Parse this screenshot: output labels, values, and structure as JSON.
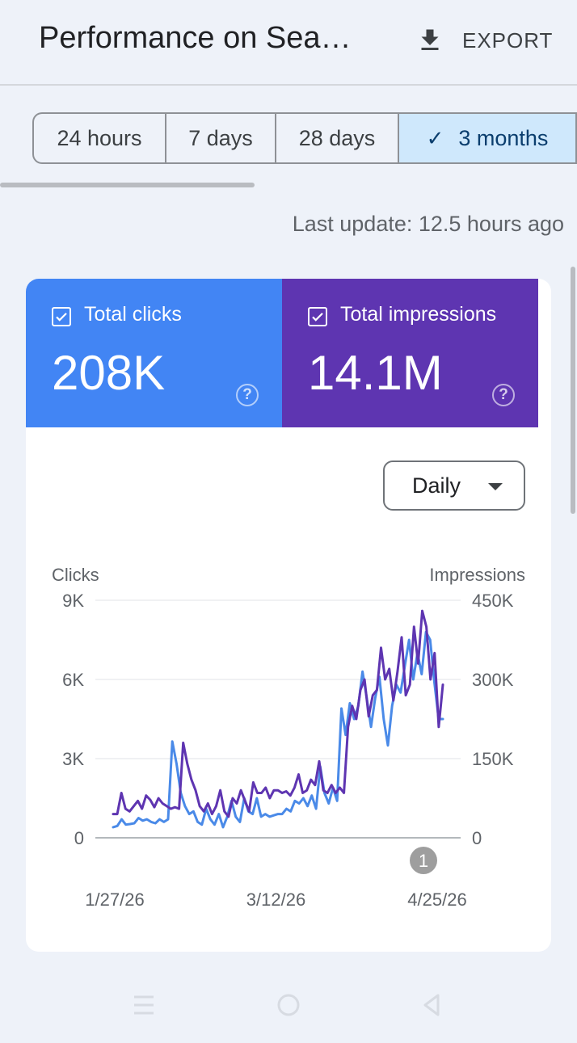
{
  "header": {
    "title": "Performance on Sea…",
    "export_label": "EXPORT"
  },
  "date_range": {
    "options": [
      "24 hours",
      "7 days",
      "28 days",
      "3 months"
    ],
    "selected": "3 months"
  },
  "last_update": "Last update: 12.5 hours ago",
  "metrics": {
    "clicks": {
      "label": "Total clicks",
      "value": "208K",
      "color": "#4285f4",
      "checked": true
    },
    "impressions": {
      "label": "Total impressions",
      "value": "14.1M",
      "color": "#5e35b1",
      "checked": true
    }
  },
  "granularity": {
    "selected": "Daily"
  },
  "chart_data": {
    "type": "line",
    "left_axis": {
      "label": "Clicks",
      "ticks": [
        "0",
        "3K",
        "6K",
        "9K"
      ],
      "range": [
        0,
        9000
      ]
    },
    "right_axis": {
      "label": "Impressions",
      "ticks": [
        "0",
        "150K",
        "300K",
        "450K"
      ],
      "range": [
        0,
        450000
      ]
    },
    "x_ticks": [
      "1/27/26",
      "3/12/26",
      "4/25/26"
    ],
    "x_range": [
      "1/27/26",
      "4/29/26"
    ],
    "annotation": {
      "label": "1",
      "date": "4/23/26"
    },
    "grid": true,
    "series": [
      {
        "axis": "left",
        "color": "#4a8ae8",
        "values": [
          400,
          450,
          700,
          500,
          520,
          550,
          750,
          650,
          700,
          600,
          550,
          700,
          600,
          700,
          3650,
          2800,
          1700,
          1200,
          900,
          1000,
          600,
          500,
          1100,
          700,
          500,
          900,
          400,
          800,
          1400,
          800,
          600,
          1500,
          1000,
          900,
          1500,
          800,
          900,
          800,
          850,
          900,
          900,
          1100,
          1000,
          1400,
          1300,
          1500,
          1200,
          1600,
          1100,
          2700,
          1700,
          1300,
          1900,
          1400,
          4900,
          3900,
          5100,
          4500,
          5000,
          6300,
          5300,
          4200,
          5300,
          6100,
          4500,
          3500,
          5000,
          5800,
          5500,
          6500,
          7500,
          6000,
          7000,
          6200,
          7800,
          7500,
          5900,
          4500,
          4500
        ]
      },
      {
        "axis": "right",
        "values": [
          45000,
          45000,
          85000,
          55000,
          50000,
          60000,
          70000,
          55000,
          80000,
          72000,
          58000,
          75000,
          65000,
          60000,
          55000,
          58000,
          55000,
          180000,
          140000,
          110000,
          90000,
          60000,
          50000,
          65000,
          45000,
          60000,
          90000,
          50000,
          40000,
          75000,
          65000,
          90000,
          70000,
          50000,
          105000,
          85000,
          85000,
          95000,
          75000,
          90000,
          90000,
          85000,
          88000,
          80000,
          95000,
          120000,
          85000,
          90000,
          110000,
          100000,
          145000,
          90000,
          85000,
          100000,
          85000,
          95000,
          85000,
          210000,
          250000,
          225000,
          280000,
          300000,
          230000,
          270000,
          280000,
          360000,
          300000,
          320000,
          260000,
          315000,
          380000,
          270000,
          290000,
          400000,
          330000,
          430000,
          400000,
          300000,
          350000,
          210000,
          290000
        ],
        "color": "#5e35b1"
      }
    ]
  },
  "nav": {
    "buttons": [
      "recent-apps",
      "home",
      "back"
    ]
  }
}
